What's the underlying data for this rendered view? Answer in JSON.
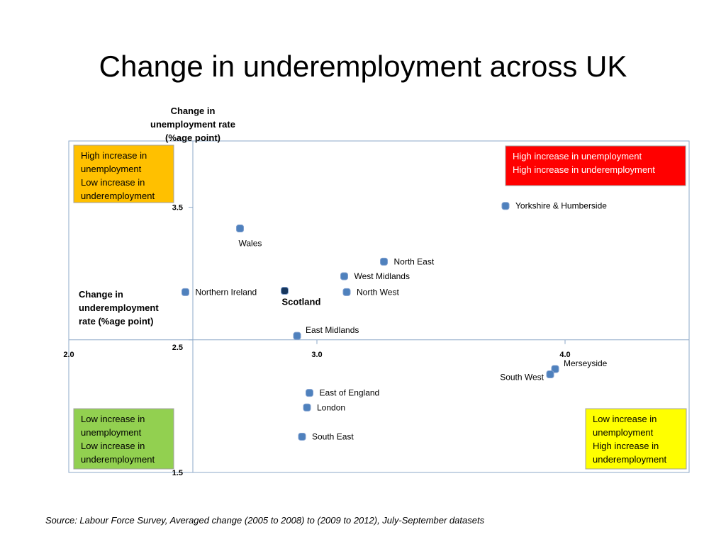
{
  "slide": {
    "title": "Change in underemployment across UK",
    "source": "Source: Labour Force Survey, Averaged change (2005 to 2008)  to (2009 to 2012), July-September datasets"
  },
  "chart_data": {
    "type": "scatter",
    "title": "",
    "xlabel": "Change in underemployment rate (%age point)",
    "ylabel": "Change in unemployment rate (%age point)",
    "xlim": [
      2.0,
      4.5
    ],
    "ylim": [
      1.5,
      4.0
    ],
    "x_cross": 2.5,
    "y_cross": 2.5,
    "x_ticks": [
      {
        "value": 2.0,
        "label": "2.0"
      },
      {
        "value": 3.0,
        "label": "3.0"
      },
      {
        "value": 4.0,
        "label": "4.0"
      }
    ],
    "y_ticks": [
      {
        "value": 1.5,
        "label": "1.5"
      },
      {
        "value": 2.5,
        "label": "2.5"
      },
      {
        "value": 3.5,
        "label": "3.5"
      }
    ],
    "grid": false,
    "marker_color": "#4f81bd",
    "highlight_color": "#17375e",
    "points": [
      {
        "label": "Yorkshire & Humberside",
        "x": 3.76,
        "y": 3.51,
        "label_pos": "right"
      },
      {
        "label": "Wales",
        "x": 2.69,
        "y": 3.34,
        "label_pos": "below"
      },
      {
        "label": "North East",
        "x": 3.27,
        "y": 3.09,
        "label_pos": "right"
      },
      {
        "label": "West Midlands",
        "x": 3.11,
        "y": 2.98,
        "label_pos": "right"
      },
      {
        "label": "Northern Ireland",
        "x": 2.47,
        "y": 2.86,
        "label_pos": "right"
      },
      {
        "label": "Scotland",
        "x": 2.87,
        "y": 2.87,
        "label_pos": "below-right",
        "highlight": true
      },
      {
        "label": "North West",
        "x": 3.12,
        "y": 2.86,
        "label_pos": "right"
      },
      {
        "label": "East Midlands",
        "x": 2.92,
        "y": 2.53,
        "label_pos": "above-right"
      },
      {
        "label": "Merseyside",
        "x": 3.96,
        "y": 2.28,
        "label_pos": "above-right"
      },
      {
        "label": "South West",
        "x": 3.94,
        "y": 2.24,
        "label_pos": "left"
      },
      {
        "label": "East of England",
        "x": 2.97,
        "y": 2.1,
        "label_pos": "right"
      },
      {
        "label": "London",
        "x": 2.96,
        "y": 1.99,
        "label_pos": "right"
      },
      {
        "label": "South East",
        "x": 2.94,
        "y": 1.77,
        "label_pos": "right"
      }
    ],
    "quadrant_boxes": [
      {
        "position": "top-left",
        "lines": [
          "High increase in",
          "unemployment",
          "Low increase in",
          "underemployment"
        ],
        "fill": "#ffc000",
        "text_color": "#000000"
      },
      {
        "position": "top-right",
        "lines": [
          "High increase  in unemployment",
          "High increase in underemployment"
        ],
        "fill": "#ff0000",
        "text_color": "#ffffff"
      },
      {
        "position": "bottom-left",
        "lines": [
          "Low increase in",
          "unemployment",
          "Low increase in",
          "underemployment"
        ],
        "fill": "#92d050",
        "text_color": "#000000"
      },
      {
        "position": "bottom-right",
        "lines": [
          "Low increase in",
          "unemployment",
          "High increase in",
          "underemployment"
        ],
        "fill": "#ffff00",
        "text_color": "#000000"
      }
    ]
  }
}
